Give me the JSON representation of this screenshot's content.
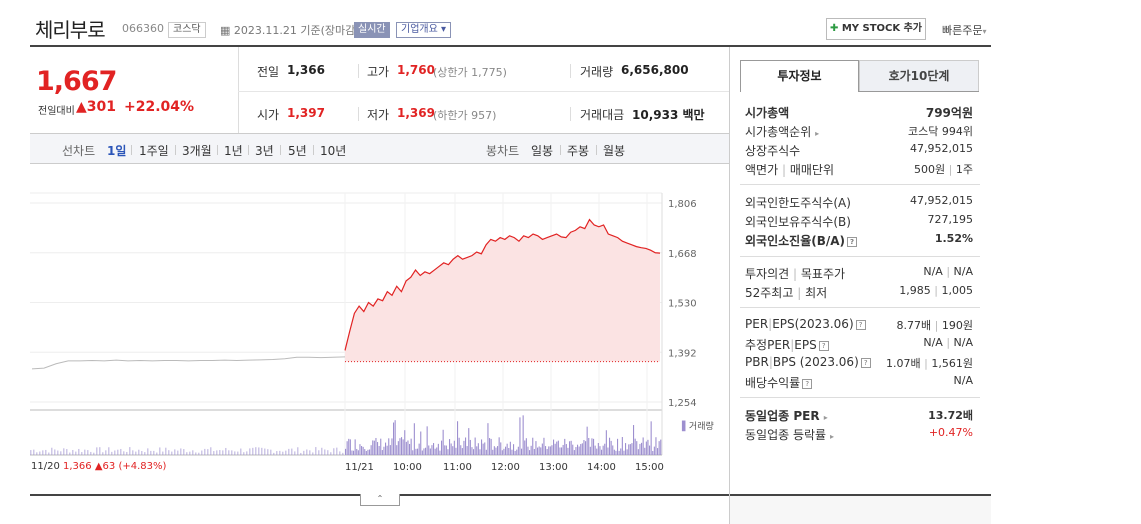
{
  "header": {
    "title": "체리부로",
    "code": "066360",
    "market": "코스닥",
    "date": "2023.11.21 기준(장마감)",
    "realtime": "실시간",
    "corp_info": "기업개요",
    "mystock": "MY STOCK 추가",
    "quick_order": "빠른주문"
  },
  "price": {
    "current": "1,667",
    "change_label": "전일대비",
    "change_value": "301",
    "change_pct": "+22.04%"
  },
  "stats": {
    "prev_label": "전일",
    "prev": "1,366",
    "high_label": "고가",
    "high": "1,760",
    "upper_limit": "(상한가 1,775)",
    "volume_label": "거래량",
    "volume": "6,656,800",
    "open_label": "시가",
    "open": "1,397",
    "low_label": "저가",
    "low": "1,369",
    "lower_limit": "(하한가 957)",
    "amount_label": "거래대금",
    "amount": "10,933",
    "amount_unit": "백만"
  },
  "tabs": {
    "line_label": "선차트",
    "line": [
      "1일",
      "1주일",
      "3개월",
      "1년",
      "3년",
      "5년",
      "10년"
    ],
    "candle_label": "봉차트",
    "candle": [
      "일봉",
      "주봉",
      "월봉"
    ]
  },
  "chart_data": {
    "type": "line",
    "y_ticks": [
      "1,806",
      "1,668",
      "1,530",
      "1,392",
      "1,254"
    ],
    "ylim": [
      1254,
      1806
    ],
    "prev_close": 1366,
    "x_ticks": [
      "11/21",
      "10:00",
      "11:00",
      "12:00",
      "13:00",
      "14:00",
      "15:00"
    ],
    "prev_day_note": {
      "date": "11/20",
      "price": "1,366",
      "change": "63",
      "pct": "(+4.83%)"
    },
    "volume_label": "거래량",
    "colors": {
      "line": "#e12323",
      "fill": "#fbe3e3",
      "prev": "#bbbbbb",
      "volume": "#9d8fcf"
    },
    "prev_series": [
      1346,
      1348,
      1360,
      1368,
      1368,
      1369,
      1368,
      1370,
      1368,
      1369,
      1368,
      1369,
      1369,
      1368,
      1369,
      1369,
      1370,
      1369,
      1370,
      1371,
      1372,
      1374,
      1378,
      1378,
      1377,
      1378,
      1379
    ],
    "series": [
      1397,
      1450,
      1500,
      1520,
      1505,
      1530,
      1520,
      1540,
      1535,
      1560,
      1550,
      1575,
      1560,
      1590,
      1600,
      1620,
      1605,
      1615,
      1610,
      1620,
      1630,
      1640,
      1635,
      1650,
      1660,
      1650,
      1655,
      1660,
      1670,
      1665,
      1690,
      1705,
      1700,
      1710,
      1705,
      1715,
      1710,
      1700,
      1715,
      1710,
      1720,
      1715,
      1705,
      1710,
      1715,
      1720,
      1712,
      1710,
      1725,
      1730,
      1740,
      1735,
      1760,
      1745,
      1740,
      1745,
      1720,
      1715,
      1710,
      1700,
      1695,
      1690,
      1685,
      1682,
      1680,
      1675,
      1668,
      1667
    ]
  },
  "panel": {
    "tab1": "투자정보",
    "tab2": "호가10단계",
    "rows1": [
      {
        "k": "시가총액",
        "v": "799억원"
      },
      {
        "k": "시가총액순위",
        "v": "코스닥 994위"
      },
      {
        "k": "상장주식수",
        "v": "47,952,015"
      },
      {
        "k": "액면가",
        "k2": "매매단위",
        "v": "500원",
        "v2": "1주"
      }
    ],
    "rows2": [
      {
        "k": "외국인한도주식수(A)",
        "v": "47,952,015"
      },
      {
        "k": "외국인보유주식수(B)",
        "v": "727,195"
      },
      {
        "k": "외국인소진율(B/A)",
        "v": "1.52%"
      }
    ],
    "rows3": [
      {
        "k": "투자의견",
        "k2": "목표주가",
        "v": "N/A",
        "v2": "N/A"
      },
      {
        "k": "52주최고",
        "k2": "최저",
        "v": "1,985",
        "v2": "1,005"
      }
    ],
    "rows4": [
      {
        "k": "PER",
        "k2": "EPS(2023.06)",
        "v": "8.77배",
        "v2": "190원"
      },
      {
        "k": "추정PER",
        "k2": "EPS",
        "v": "N/A",
        "v2": "N/A"
      },
      {
        "k": "PBR",
        "k2": "BPS (2023.06)",
        "v": "1.07배",
        "v2": "1,561원"
      },
      {
        "k": "배당수익률",
        "v": "N/A"
      }
    ],
    "rows5": [
      {
        "k": "동일업종 PER",
        "v": "13.72배"
      },
      {
        "k": "동일업종 등락률",
        "v": "+0.47%"
      }
    ]
  }
}
